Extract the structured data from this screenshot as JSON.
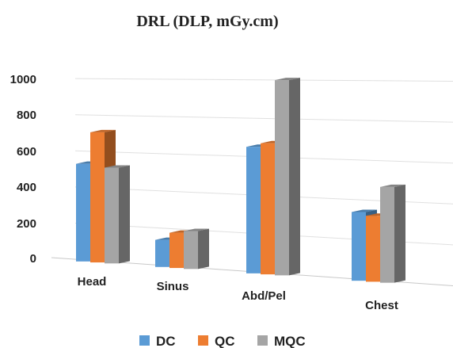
{
  "chart_data": {
    "type": "bar",
    "title": "DRL (DLP, mGy.cm)",
    "categories": [
      "Head",
      "Sinus",
      "Abd/Pel",
      "Chest"
    ],
    "series": [
      {
        "name": "DC",
        "color": "#5b9bd5",
        "values": [
          540,
          150,
          700,
          380
        ]
      },
      {
        "name": "QC",
        "color": "#ed7d31",
        "values": [
          720,
          195,
          725,
          365
        ]
      },
      {
        "name": "MQC",
        "color": "#a5a5a5",
        "values": [
          530,
          210,
          1080,
          530
        ]
      }
    ],
    "yticks": [
      "0",
      "200",
      "400",
      "600",
      "800",
      "1000"
    ],
    "ylim": [
      0,
      1100
    ],
    "grid": true,
    "legend_position": "bottom",
    "style": "3d-perspective"
  }
}
